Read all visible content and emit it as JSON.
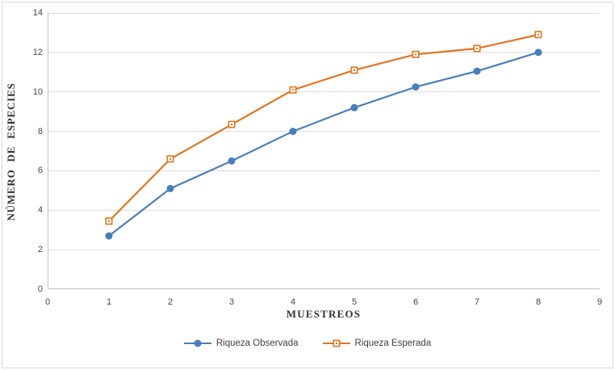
{
  "chart_data": {
    "type": "line",
    "title": "",
    "xlabel": "MUESTREOS",
    "ylabel": "NÚMERO DE ESPECIES",
    "x": [
      1,
      2,
      3,
      4,
      5,
      6,
      7,
      8
    ],
    "series": [
      {
        "name": "Riqueza Observada",
        "color": "#4A7EBB",
        "marker": "circle",
        "values": [
          2.7,
          5.1,
          6.5,
          8.0,
          9.2,
          10.25,
          11.05,
          12.0
        ]
      },
      {
        "name": "Riqueza Esperada",
        "color": "#E2751E",
        "marker": "square",
        "values": [
          3.45,
          6.6,
          8.35,
          10.1,
          11.1,
          11.9,
          12.2,
          12.9
        ]
      }
    ],
    "xlim": [
      0,
      9
    ],
    "ylim": [
      0,
      14
    ],
    "x_ticks": [
      0,
      1,
      2,
      3,
      4,
      5,
      6,
      7,
      8,
      9
    ],
    "y_ticks": [
      0,
      2,
      4,
      6,
      8,
      10,
      12,
      14
    ],
    "grid": "horizontal",
    "legend_position": "bottom"
  },
  "colors": {
    "gridline": "#D9D9D9",
    "axis_line": "#BFBFBF",
    "tick_text": "#444444",
    "frame_border": "#D9D9D9",
    "background": "#FFFFFF"
  }
}
